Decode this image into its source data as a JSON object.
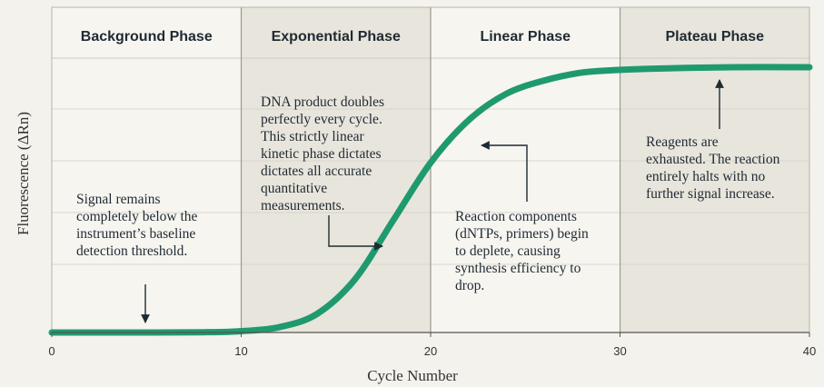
{
  "chart_data": {
    "type": "line",
    "title": "",
    "xlabel": "Cycle Number",
    "ylabel": "Fluorescence (ΔRn)",
    "xlim": [
      0,
      40
    ],
    "xticks": [
      0,
      10,
      20,
      30,
      40
    ],
    "ylim": [
      0,
      1
    ],
    "grid": true,
    "series": [
      {
        "color": "#1f9a6e",
        "x": [
          0,
          4,
          8,
          10,
          12,
          14,
          16,
          18,
          20,
          22,
          24,
          26,
          28,
          30,
          32,
          36,
          40
        ],
        "y": [
          0.0,
          0.0,
          0.001,
          0.005,
          0.02,
          0.07,
          0.2,
          0.42,
          0.64,
          0.8,
          0.9,
          0.95,
          0.98,
          0.99,
          0.995,
          1.0,
          1.0
        ]
      }
    ],
    "phases": [
      {
        "label": "Background Phase",
        "start": 0,
        "end": 10,
        "shaded": false
      },
      {
        "label": "Exponential Phase",
        "start": 10,
        "end": 20,
        "shaded": true
      },
      {
        "label": "Linear Phase",
        "start": 20,
        "end": 30,
        "shaded": false
      },
      {
        "label": "Plateau Phase",
        "start": 30,
        "end": 40,
        "shaded": true
      }
    ],
    "annotations": [
      {
        "lines": [
          "Signal remains",
          "completely below the",
          "instrument’s baseline",
          "detection threshold."
        ]
      },
      {
        "lines": [
          "DNA product doubles",
          "perfectly every cycle.",
          "This strictly linear",
          "kinetic phase dictates",
          "dictates all accurate",
          "quantitative",
          "measurements."
        ]
      },
      {
        "lines": [
          "Reaction components",
          "(dNTPs, primers) begin",
          "to deplete, causing",
          "synthesis efficiency to",
          "drop."
        ]
      },
      {
        "lines": [
          "Reagents are",
          "exhausted. The reaction",
          "entirely halts with no",
          "further signal increase."
        ]
      }
    ]
  }
}
